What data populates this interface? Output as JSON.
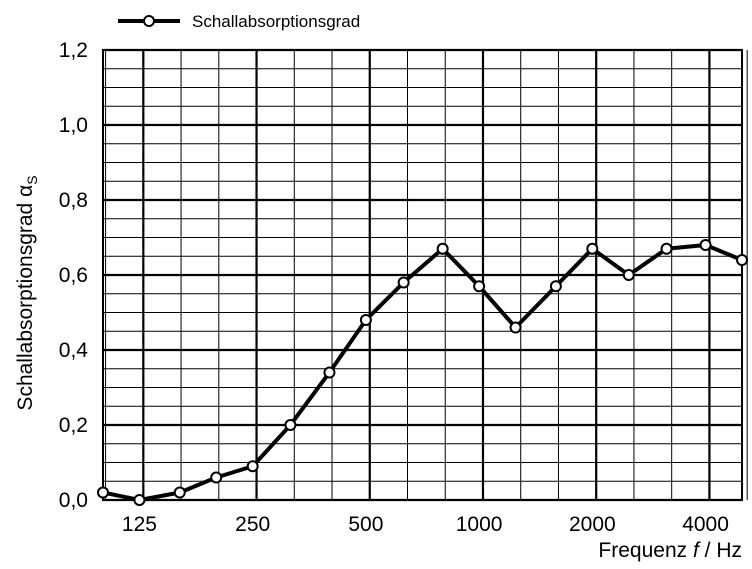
{
  "chart_data": {
    "type": "line",
    "legend": {
      "label": "Schallabsorptionsgrad",
      "position": "top-left"
    },
    "ylabel": {
      "text": "Schallabsorptionsgrad α",
      "subscript": "S"
    },
    "xlabel": {
      "prefix": "Frequenz ",
      "symbol": "f",
      "suffix": " / Hz"
    },
    "x_scale": "log-third-octave",
    "x_range": [
      100,
      5000
    ],
    "ylim": [
      0,
      1.2
    ],
    "x_tick_labels": [
      "125",
      "250",
      "500",
      "1000",
      "2000",
      "4000"
    ],
    "y_tick_labels": [
      "0,0",
      "0,2",
      "0,4",
      "0,6",
      "0,8",
      "1,0",
      "1,2"
    ],
    "grid": true,
    "series": [
      {
        "name": "Schallabsorptionsgrad",
        "x": [
          100,
          125,
          160,
          200,
          250,
          315,
          400,
          500,
          630,
          800,
          1000,
          1250,
          1600,
          2000,
          2500,
          3150,
          4000,
          5000
        ],
        "y": [
          0.02,
          0.0,
          0.02,
          0.06,
          0.09,
          0.2,
          0.34,
          0.48,
          0.58,
          0.67,
          0.57,
          0.46,
          0.57,
          0.67,
          0.6,
          0.67,
          0.68,
          0.64
        ]
      }
    ],
    "colors": {
      "line": "#000000",
      "marker_fill": "#ffffff",
      "grid": "#000000"
    }
  }
}
